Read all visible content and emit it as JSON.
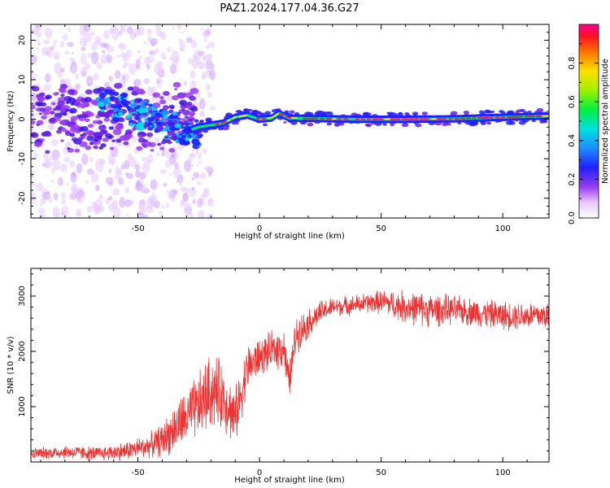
{
  "figure": {
    "title": "PAZ1.2024.177.04.36.G27"
  },
  "chart_data": [
    {
      "type": "heatmap",
      "description": "spectrogram",
      "xlabel": "Height of straight line (km)",
      "ylabel": "Frequency (Hz)",
      "xlim": [
        -94,
        119
      ],
      "ylim": [
        -25,
        24
      ],
      "xticks": [
        -50,
        0,
        50,
        100
      ],
      "xtick_labels": [
        "-50",
        "0",
        "50",
        "100"
      ],
      "yticks": [
        -20,
        -10,
        0,
        10,
        20
      ],
      "ytick_labels": [
        "-20",
        "-10",
        "0",
        "10",
        "20"
      ],
      "colorbar": {
        "label": "Normalized spectral amplitude",
        "range": [
          0,
          1
        ],
        "ticks": [
          0,
          0.2,
          0.4,
          0.6,
          0.8
        ],
        "tick_labels": [
          "0.0",
          "0.2",
          "0.4",
          "0.6",
          "0.8"
        ],
        "colormap": "rainbow (white-purple-blue-cyan-green-yellow-red-magenta)"
      },
      "ridge": {
        "x": [
          -30,
          -25,
          -20,
          -15,
          -10,
          -5,
          0,
          5,
          8,
          12,
          20,
          40,
          60,
          80,
          100,
          119
        ],
        "y": [
          -3,
          -2,
          -1.5,
          -1,
          0.5,
          1,
          0,
          0.3,
          1.5,
          0.3,
          0.2,
          0,
          0,
          0.1,
          0.5,
          0.8
        ]
      }
    },
    {
      "type": "line",
      "xlabel": "Height of straight line (km)",
      "ylabel": "SNR (10 * v/v)",
      "xlim": [
        -94,
        119
      ],
      "ylim": [
        0,
        3500
      ],
      "xticks": [
        -50,
        0,
        50,
        100
      ],
      "xtick_labels": [
        "-50",
        "0",
        "50",
        "100"
      ],
      "yticks": [
        1000,
        2000,
        3000
      ],
      "ytick_labels": [
        "1000",
        "2000",
        "3000"
      ],
      "color": "#ee3333",
      "envelope": {
        "x": [
          -94,
          -80,
          -65,
          -55,
          -45,
          -40,
          -35,
          -30,
          -25,
          -20,
          -15,
          -10,
          -5,
          0,
          5,
          10,
          12,
          15,
          20,
          25,
          30,
          40,
          50,
          60,
          70,
          80,
          90,
          100,
          110,
          119
        ],
        "mean": [
          150,
          180,
          150,
          200,
          300,
          400,
          600,
          800,
          1000,
          1300,
          1200,
          800,
          1700,
          1900,
          2000,
          2100,
          1400,
          2300,
          2500,
          2700,
          2800,
          2850,
          2900,
          2800,
          2750,
          2750,
          2700,
          2650,
          2650,
          2650
        ],
        "spread": [
          120,
          150,
          150,
          200,
          250,
          350,
          500,
          600,
          700,
          800,
          700,
          600,
          500,
          400,
          400,
          450,
          400,
          400,
          300,
          250,
          200,
          200,
          250,
          350,
          350,
          300,
          300,
          300,
          300,
          300
        ]
      }
    }
  ]
}
